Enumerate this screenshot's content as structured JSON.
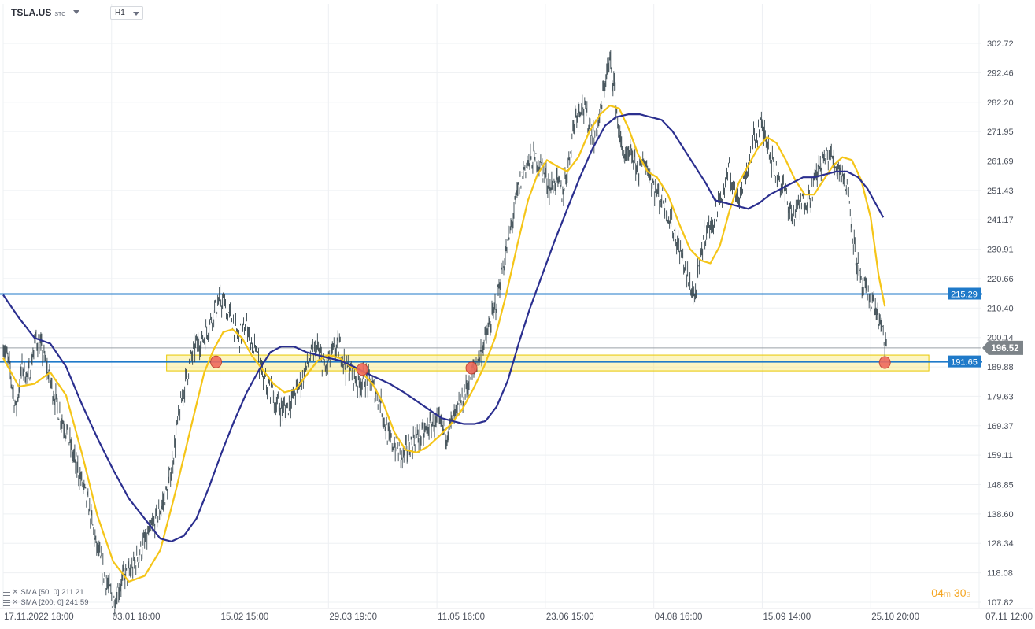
{
  "toolbar": {
    "symbol": "TSLA.US",
    "symbol_suffix": "STC",
    "timeframe": "H1"
  },
  "legend": [
    {
      "label": "SMA [50, 0] 211.21",
      "color": "#f5c518"
    },
    {
      "label": "SMA [200, 0] 241.59",
      "color": "#2b2f8f"
    }
  ],
  "countdown": {
    "minutes": "04",
    "minutes_unit": "m",
    "seconds": "30",
    "seconds_unit": "s"
  },
  "chart_data": {
    "type": "line",
    "title": "",
    "xlabel": "",
    "ylabel": "",
    "ylim": [
      105.0,
      308.0
    ],
    "grid": true,
    "y_ticks": [
      302.72,
      292.46,
      282.2,
      271.95,
      261.69,
      251.43,
      241.17,
      230.91,
      220.66,
      210.4,
      200.14,
      189.88,
      179.63,
      169.37,
      159.11,
      148.85,
      138.6,
      128.34,
      118.08,
      107.82
    ],
    "x_ticks": [
      {
        "label": "17.11.2022 18:00",
        "i": 0
      },
      {
        "label": "03.01 18:00",
        "i": 138
      },
      {
        "label": "15.02 15:00",
        "i": 276
      },
      {
        "label": "29.03 19:00",
        "i": 414
      },
      {
        "label": "11.05 16:00",
        "i": 552
      },
      {
        "label": "23.06 15:00",
        "i": 690
      },
      {
        "label": "04.08 16:00",
        "i": 828
      },
      {
        "label": "15.09 14:00",
        "i": 966
      },
      {
        "label": "25.10 20:00",
        "i": 1104
      },
      {
        "label": "07.11 12:00",
        "i": 1242
      }
    ],
    "n_slots": 1244,
    "series": [
      {
        "name": "TSLA.US",
        "kind": "price",
        "color": "#37474f",
        "keypoints": [
          [
            0,
            198
          ],
          [
            8,
            190
          ],
          [
            16,
            175
          ],
          [
            24,
            190
          ],
          [
            32,
            186
          ],
          [
            42,
            200
          ],
          [
            50,
            195
          ],
          [
            60,
            185
          ],
          [
            70,
            175
          ],
          [
            80,
            168
          ],
          [
            90,
            158
          ],
          [
            100,
            150
          ],
          [
            110,
            140
          ],
          [
            118,
            128
          ],
          [
            126,
            120
          ],
          [
            134,
            113
          ],
          [
            140,
            108
          ],
          [
            146,
            112
          ],
          [
            154,
            117
          ],
          [
            162,
            118
          ],
          [
            172,
            124
          ],
          [
            182,
            130
          ],
          [
            192,
            135
          ],
          [
            200,
            140
          ],
          [
            210,
            148
          ],
          [
            216,
            158
          ],
          [
            222,
            170
          ],
          [
            230,
            182
          ],
          [
            238,
            192
          ],
          [
            246,
            198
          ],
          [
            256,
            200
          ],
          [
            266,
            208
          ],
          [
            276,
            213
          ],
          [
            284,
            210
          ],
          [
            292,
            206
          ],
          [
            300,
            200
          ],
          [
            310,
            205
          ],
          [
            320,
            196
          ],
          [
            330,
            186
          ],
          [
            340,
            182
          ],
          [
            350,
            176
          ],
          [
            360,
            175
          ],
          [
            370,
            180
          ],
          [
            380,
            185
          ],
          [
            390,
            193
          ],
          [
            400,
            196
          ],
          [
            410,
            189
          ],
          [
            420,
            195
          ],
          [
            428,
            197
          ],
          [
            436,
            190
          ],
          [
            444,
            188
          ],
          [
            452,
            184
          ],
          [
            460,
            186
          ],
          [
            470,
            183
          ],
          [
            480,
            178
          ],
          [
            490,
            165
          ],
          [
            500,
            162
          ],
          [
            508,
            158
          ],
          [
            516,
            162
          ],
          [
            524,
            165
          ],
          [
            534,
            166
          ],
          [
            544,
            170
          ],
          [
            554,
            170
          ],
          [
            564,
            167
          ],
          [
            574,
            172
          ],
          [
            584,
            178
          ],
          [
            594,
            186
          ],
          [
            604,
            192
          ],
          [
            614,
            200
          ],
          [
            624,
            208
          ],
          [
            634,
            222
          ],
          [
            644,
            235
          ],
          [
            654,
            250
          ],
          [
            664,
            260
          ],
          [
            674,
            262
          ],
          [
            680,
            262
          ],
          [
            688,
            258
          ],
          [
            696,
            252
          ],
          [
            704,
            255
          ],
          [
            712,
            250
          ],
          [
            720,
            262
          ],
          [
            728,
            278
          ],
          [
            736,
            282
          ],
          [
            744,
            276
          ],
          [
            752,
            270
          ],
          [
            760,
            278
          ],
          [
            766,
            290
          ],
          [
            772,
            296
          ],
          [
            778,
            288
          ],
          [
            784,
            270
          ],
          [
            792,
            262
          ],
          [
            800,
            264
          ],
          [
            808,
            258
          ],
          [
            816,
            262
          ],
          [
            824,
            256
          ],
          [
            832,
            250
          ],
          [
            840,
            248
          ],
          [
            848,
            242
          ],
          [
            856,
            235
          ],
          [
            864,
            228
          ],
          [
            872,
            220
          ],
          [
            880,
            214
          ],
          [
            886,
            225
          ],
          [
            892,
            236
          ],
          [
            900,
            240
          ],
          [
            908,
            244
          ],
          [
            916,
            250
          ],
          [
            924,
            258
          ],
          [
            932,
            250
          ],
          [
            940,
            252
          ],
          [
            948,
            260
          ],
          [
            956,
            270
          ],
          [
            964,
            274
          ],
          [
            972,
            270
          ],
          [
            980,
            260
          ],
          [
            988,
            255
          ],
          [
            996,
            250
          ],
          [
            1004,
            242
          ],
          [
            1012,
            245
          ],
          [
            1020,
            248
          ],
          [
            1028,
            250
          ],
          [
            1036,
            258
          ],
          [
            1044,
            262
          ],
          [
            1052,
            264
          ],
          [
            1060,
            260
          ],
          [
            1068,
            258
          ],
          [
            1076,
            250
          ],
          [
            1084,
            230
          ],
          [
            1092,
            218
          ],
          [
            1100,
            215
          ],
          [
            1108,
            212
          ],
          [
            1116,
            205
          ],
          [
            1122,
            198
          ],
          [
            1124,
            196.52
          ]
        ]
      },
      {
        "name": "SMA [50, 0]",
        "kind": "sma50",
        "color": "#f5c518",
        "keypoints": [
          [
            0,
            193
          ],
          [
            20,
            183
          ],
          [
            40,
            184
          ],
          [
            60,
            188
          ],
          [
            80,
            180
          ],
          [
            100,
            160
          ],
          [
            120,
            138
          ],
          [
            140,
            122
          ],
          [
            160,
            115
          ],
          [
            180,
            117
          ],
          [
            200,
            126
          ],
          [
            220,
            147
          ],
          [
            240,
            170
          ],
          [
            256,
            188
          ],
          [
            268,
            196
          ],
          [
            280,
            202
          ],
          [
            292,
            203
          ],
          [
            304,
            200
          ],
          [
            316,
            194
          ],
          [
            330,
            189
          ],
          [
            344,
            184
          ],
          [
            358,
            181
          ],
          [
            372,
            182
          ],
          [
            386,
            187
          ],
          [
            400,
            192
          ],
          [
            414,
            194
          ],
          [
            428,
            193
          ],
          [
            442,
            190
          ],
          [
            456,
            188
          ],
          [
            470,
            184
          ],
          [
            484,
            177
          ],
          [
            498,
            167
          ],
          [
            512,
            161
          ],
          [
            526,
            160
          ],
          [
            540,
            162
          ],
          [
            556,
            166
          ],
          [
            570,
            170
          ],
          [
            584,
            175
          ],
          [
            598,
            182
          ],
          [
            612,
            190
          ],
          [
            626,
            200
          ],
          [
            640,
            215
          ],
          [
            654,
            232
          ],
          [
            668,
            248
          ],
          [
            680,
            257
          ],
          [
            692,
            262
          ],
          [
            704,
            260
          ],
          [
            718,
            258
          ],
          [
            732,
            263
          ],
          [
            746,
            272
          ],
          [
            760,
            278
          ],
          [
            772,
            281
          ],
          [
            784,
            280
          ],
          [
            796,
            273
          ],
          [
            808,
            264
          ],
          [
            820,
            258
          ],
          [
            832,
            256
          ],
          [
            846,
            250
          ],
          [
            860,
            240
          ],
          [
            874,
            231
          ],
          [
            888,
            227
          ],
          [
            900,
            226
          ],
          [
            912,
            232
          ],
          [
            924,
            244
          ],
          [
            936,
            254
          ],
          [
            948,
            260
          ],
          [
            960,
            266
          ],
          [
            972,
            270
          ],
          [
            984,
            268
          ],
          [
            996,
            262
          ],
          [
            1008,
            255
          ],
          [
            1020,
            250
          ],
          [
            1032,
            250
          ],
          [
            1044,
            255
          ],
          [
            1056,
            260
          ],
          [
            1068,
            263
          ],
          [
            1080,
            262
          ],
          [
            1092,
            255
          ],
          [
            1104,
            242
          ],
          [
            1114,
            222
          ],
          [
            1122,
            211
          ]
        ]
      },
      {
        "name": "SMA [200, 0]",
        "kind": "sma200",
        "color": "#2b2f8f",
        "keypoints": [
          [
            0,
            215
          ],
          [
            20,
            207
          ],
          [
            40,
            200
          ],
          [
            60,
            198
          ],
          [
            80,
            190
          ],
          [
            100,
            177
          ],
          [
            120,
            165
          ],
          [
            140,
            154
          ],
          [
            160,
            144
          ],
          [
            180,
            137
          ],
          [
            200,
            130
          ],
          [
            214,
            129
          ],
          [
            230,
            131
          ],
          [
            246,
            137
          ],
          [
            262,
            148
          ],
          [
            278,
            160
          ],
          [
            294,
            171
          ],
          [
            310,
            181
          ],
          [
            326,
            189
          ],
          [
            340,
            195
          ],
          [
            354,
            197
          ],
          [
            370,
            197
          ],
          [
            386,
            195
          ],
          [
            400,
            194
          ],
          [
            414,
            193
          ],
          [
            430,
            192
          ],
          [
            446,
            190
          ],
          [
            460,
            188
          ],
          [
            476,
            186
          ],
          [
            492,
            184
          ],
          [
            510,
            181
          ],
          [
            526,
            178
          ],
          [
            542,
            175
          ],
          [
            558,
            172
          ],
          [
            572,
            171
          ],
          [
            586,
            170
          ],
          [
            600,
            170
          ],
          [
            614,
            171
          ],
          [
            628,
            176
          ],
          [
            642,
            185
          ],
          [
            656,
            198
          ],
          [
            670,
            210
          ],
          [
            686,
            222
          ],
          [
            702,
            234
          ],
          [
            718,
            245
          ],
          [
            734,
            256
          ],
          [
            750,
            266
          ],
          [
            766,
            274
          ],
          [
            780,
            277
          ],
          [
            796,
            278
          ],
          [
            810,
            278
          ],
          [
            824,
            277
          ],
          [
            838,
            276
          ],
          [
            852,
            272
          ],
          [
            866,
            266
          ],
          [
            880,
            260
          ],
          [
            894,
            254
          ],
          [
            906,
            248
          ],
          [
            920,
            247
          ],
          [
            934,
            246
          ],
          [
            948,
            245
          ],
          [
            962,
            247
          ],
          [
            976,
            250
          ],
          [
            990,
            252
          ],
          [
            1004,
            254
          ],
          [
            1018,
            256
          ],
          [
            1032,
            256
          ],
          [
            1046,
            257
          ],
          [
            1060,
            258
          ],
          [
            1074,
            258
          ],
          [
            1088,
            256
          ],
          [
            1100,
            252
          ],
          [
            1110,
            247
          ],
          [
            1120,
            242
          ]
        ]
      }
    ],
    "horizontal_levels": [
      {
        "value": 215.29,
        "label": "215.29",
        "color": "#1f7ac9"
      },
      {
        "value": 191.65,
        "label": "191.65",
        "color": "#1f7ac9"
      }
    ],
    "current_price": {
      "value": 196.52,
      "label": "196.52"
    },
    "zone": {
      "low": 188.5,
      "high": 194.0,
      "from_i": 208,
      "to_i": 1178
    },
    "markers": [
      {
        "i": 271,
        "value": 191.6
      },
      {
        "i": 457,
        "value": 189.0
      },
      {
        "i": 596,
        "value": 189.5
      },
      {
        "i": 1122,
        "value": 191.4
      }
    ]
  }
}
